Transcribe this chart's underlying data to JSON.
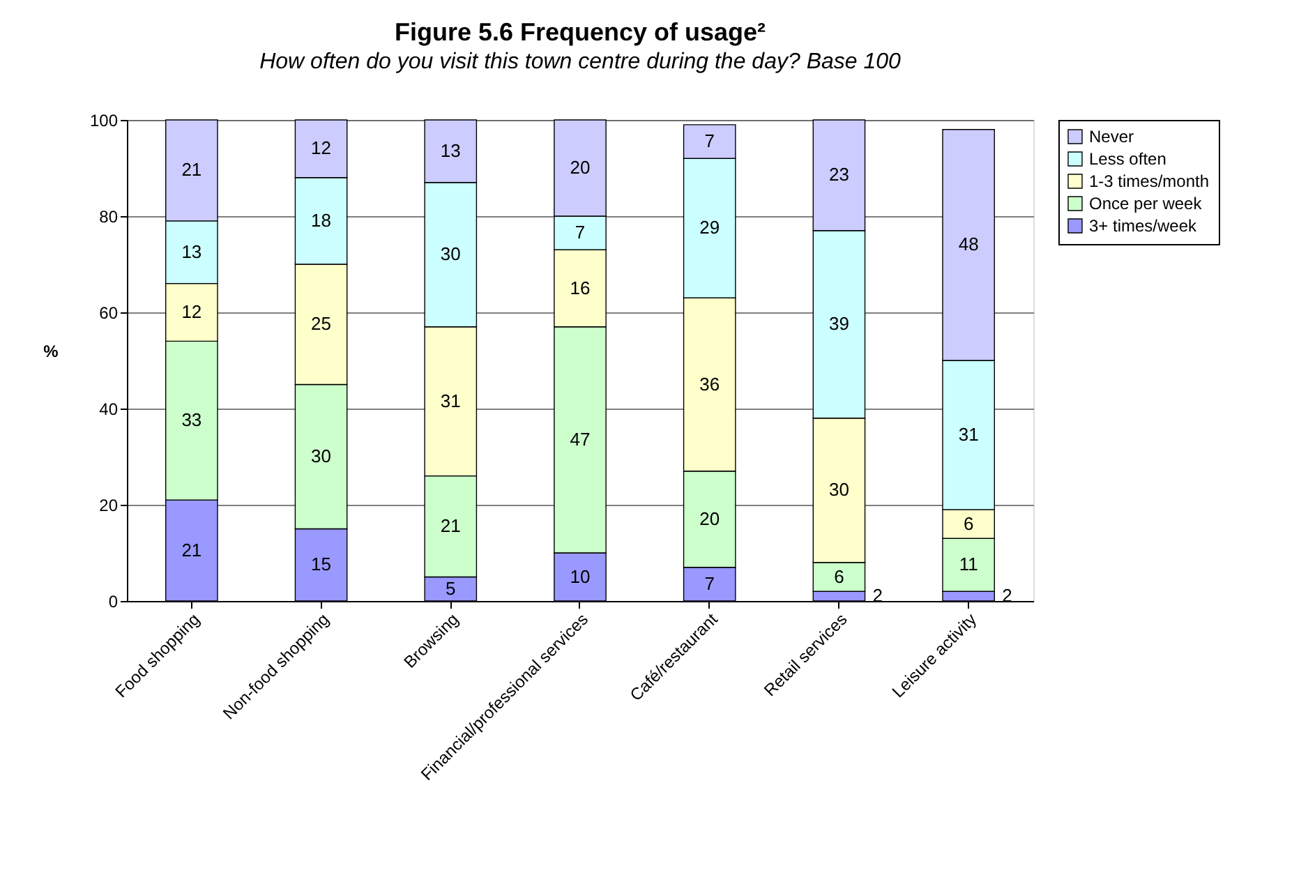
{
  "chart_data": {
    "type": "bar",
    "title": "Figure 5.6 Frequency of usage²",
    "subtitle": "How often do you visit this town centre during the day? Base 100",
    "ylabel": "%",
    "categories": [
      "Food shopping",
      "Non-food shopping",
      "Browsing",
      "Financial/professional services",
      "Café/restaurant",
      "Retail services",
      "Leisure activity"
    ],
    "stacked": true,
    "data_labels": true,
    "grid": "y",
    "legend": "right",
    "ylim": [
      0,
      100
    ],
    "yticks": [
      0,
      20,
      40,
      60,
      80,
      100
    ],
    "series": [
      {
        "name": "3+ times/week",
        "color": "#9999ff",
        "values": [
          21,
          15,
          5,
          10,
          7,
          2,
          2
        ]
      },
      {
        "name": "Once per week",
        "color": "#ccffcc",
        "values": [
          33,
          30,
          21,
          47,
          20,
          6,
          11
        ]
      },
      {
        "name": "1-3 times/month",
        "color": "#ffffcc",
        "values": [
          12,
          25,
          31,
          16,
          36,
          30,
          6
        ]
      },
      {
        "name": "Less often",
        "color": "#ccffff",
        "values": [
          13,
          18,
          30,
          7,
          29,
          39,
          31
        ]
      },
      {
        "name": "Never",
        "color": "#ccccff",
        "values": [
          21,
          12,
          13,
          20,
          7,
          23,
          48
        ]
      }
    ]
  }
}
